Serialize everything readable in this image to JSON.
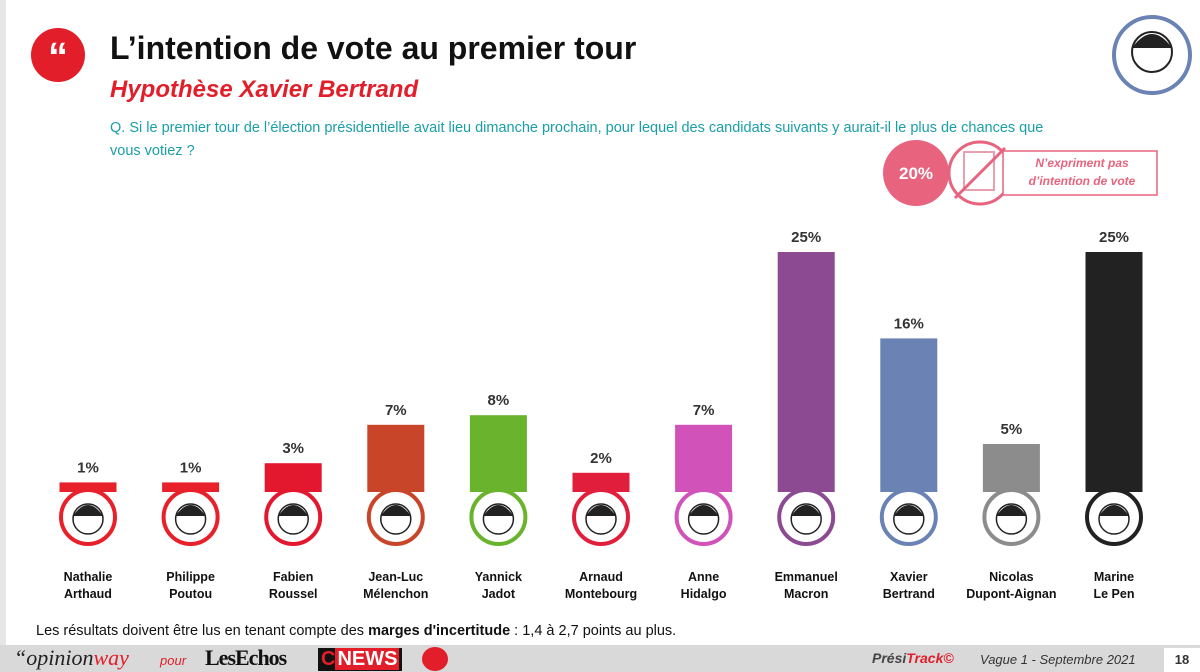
{
  "header": {
    "title": "L’intention de vote au premier tour",
    "subtitle": "Hypothèse Xavier Bertrand",
    "question": "Q. Si le premier tour de l’élection présidentielle avait lieu dimanche prochain, pour lequel des candidats suivants y aurait-il le plus de chances que vous votiez ?"
  },
  "abstention": {
    "value_label": "20%",
    "text_lines": [
      "N’expriment pas",
      "d’intention de vote"
    ]
  },
  "chart_data": {
    "type": "bar",
    "categories": [
      "Nathalie Arthaud",
      "Philippe Poutou",
      "Fabien Roussel",
      "Jean-Luc Mélenchon",
      "Yannick Jadot",
      "Arnaud Montebourg",
      "Anne Hidalgo",
      "Emmanuel Macron",
      "Xavier Bertrand",
      "Nicolas Dupont-Aignan",
      "Marine Le Pen"
    ],
    "values": [
      1,
      1,
      3,
      7,
      8,
      2,
      7,
      25,
      16,
      5,
      25
    ],
    "value_labels": [
      "1%",
      "1%",
      "3%",
      "7%",
      "8%",
      "2%",
      "7%",
      "25%",
      "16%",
      "5%",
      "25%"
    ],
    "colors": [
      "#e8202a",
      "#e8202a",
      "#e3182f",
      "#c9452a",
      "#6ab42d",
      "#e11e3c",
      "#d152b8",
      "#8b4a91",
      "#6a83b4",
      "#8c8c8c",
      "#222222"
    ]
  },
  "note": {
    "before": "Les résultats doivent être lus en tenant compte des ",
    "bold": "marges d'incertitude",
    "after": " : 1,4 à 2,7 points au plus."
  },
  "footer": {
    "opinion": "“opinion",
    "way": "way",
    "pour": "pour",
    "lesechos": "LesEchos",
    "c": "C",
    "news": "NEWS",
    "presi": "Prési",
    "track": "Track©",
    "wave": "Vague 1 - Septembre 2021",
    "page": "18"
  }
}
